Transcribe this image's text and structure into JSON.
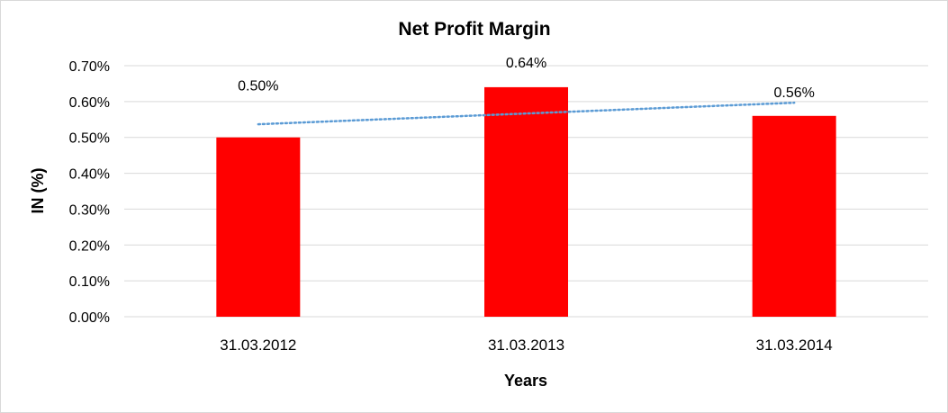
{
  "chart_data": {
    "type": "bar",
    "title": "Net Profit Margin",
    "xlabel": "Years",
    "ylabel": "IN (%)",
    "categories": [
      "31.03.2012",
      "31.03.2013",
      "31.03.2014"
    ],
    "values": [
      0.5,
      0.64,
      0.56
    ],
    "data_labels": [
      "0.50%",
      "0.64%",
      "0.56%"
    ],
    "ylim": [
      0,
      0.7
    ],
    "yticks": [
      0,
      0.1,
      0.2,
      0.3,
      0.4,
      0.5,
      0.6,
      0.7
    ],
    "ytick_labels": [
      "0.00%",
      "0.10%",
      "0.20%",
      "0.30%",
      "0.40%",
      "0.50%",
      "0.60%",
      "0.70%"
    ],
    "grid": true,
    "legend": "none",
    "trendline": "linear",
    "colors": {
      "bar": "#ff0000",
      "trendline": "#5b9bd5",
      "grid": "#d9d9d9"
    }
  }
}
